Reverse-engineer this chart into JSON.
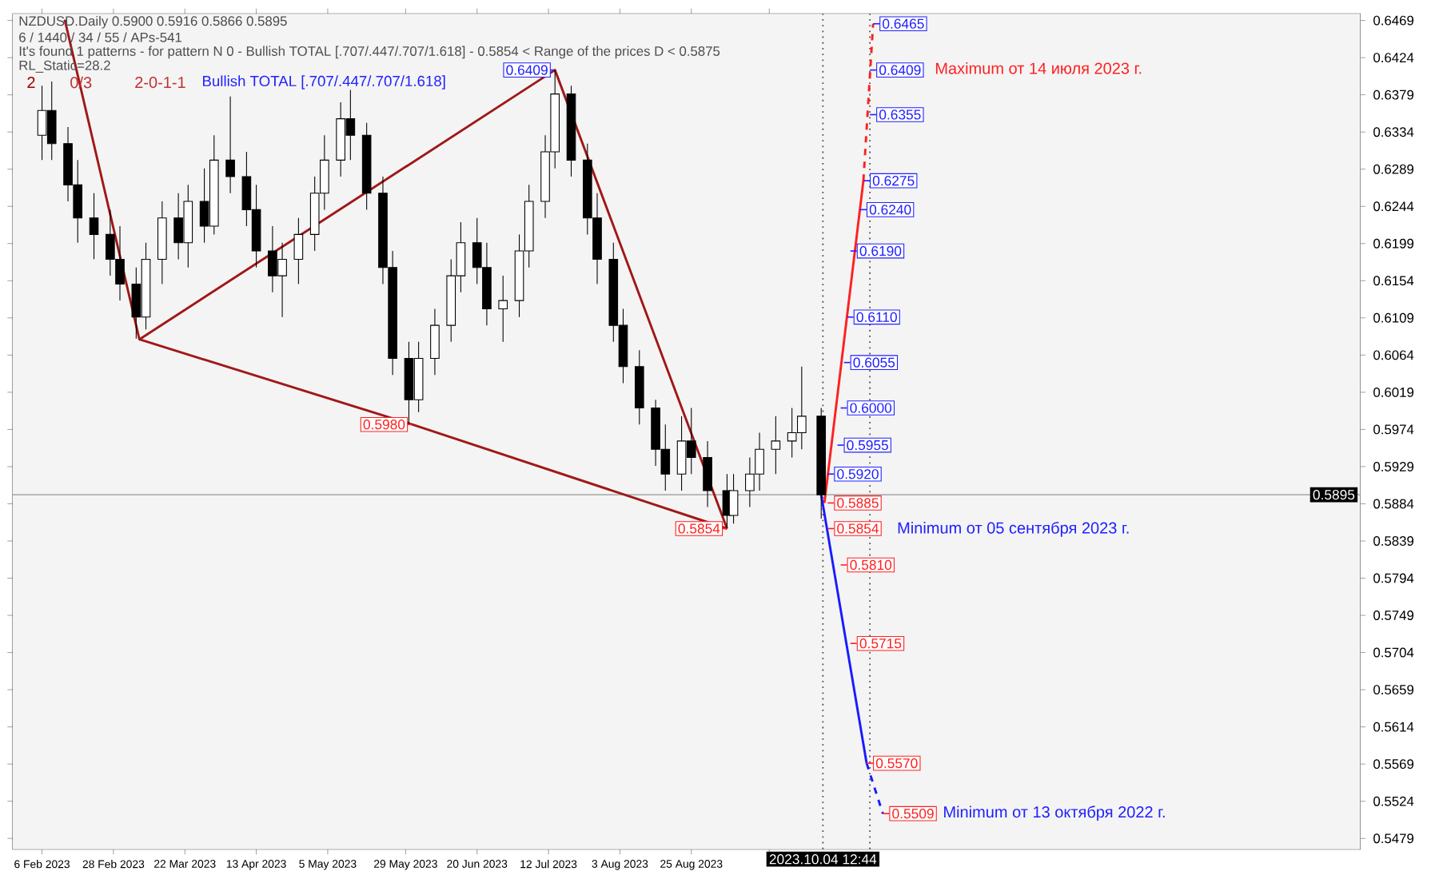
{
  "chart_data": {
    "type": "candlestick",
    "color": "#000000",
    "x": [
      "2023-02-06",
      "2023-02-09",
      "2023-02-14",
      "2023-02-17",
      "2023-02-22",
      "2023-02-27",
      "2023-03-02",
      "2023-03-07",
      "2023-03-10",
      "2023-03-15",
      "2023-03-20",
      "2023-03-23",
      "2023-03-28",
      "2023-03-31",
      "2023-04-05",
      "2023-04-10",
      "2023-04-13",
      "2023-04-18",
      "2023-04-21",
      "2023-04-26",
      "2023-05-01",
      "2023-05-04",
      "2023-05-09",
      "2023-05-12",
      "2023-05-17",
      "2023-05-22",
      "2023-05-25",
      "2023-05-30",
      "2023-06-02",
      "2023-06-07",
      "2023-06-12",
      "2023-06-15",
      "2023-06-20",
      "2023-06-23",
      "2023-06-28",
      "2023-07-03",
      "2023-07-06",
      "2023-07-11",
      "2023-07-14",
      "2023-07-19",
      "2023-07-24",
      "2023-07-27",
      "2023-08-01",
      "2023-08-04",
      "2023-08-09",
      "2023-08-14",
      "2023-08-17",
      "2023-08-22",
      "2023-08-25",
      "2023-08-30",
      "2023-09-05",
      "2023-09-07",
      "2023-09-12",
      "2023-09-15",
      "2023-09-20",
      "2023-09-25",
      "2023-09-28",
      "2023-10-04"
    ],
    "ohlc": [
      [
        0.633,
        0.639,
        0.63,
        0.636
      ],
      [
        0.636,
        0.6395,
        0.63,
        0.632
      ],
      [
        0.632,
        0.634,
        0.625,
        0.627
      ],
      [
        0.627,
        0.63,
        0.62,
        0.623
      ],
      [
        0.623,
        0.626,
        0.618,
        0.621
      ],
      [
        0.621,
        0.624,
        0.616,
        0.618
      ],
      [
        0.618,
        0.622,
        0.613,
        0.615
      ],
      [
        0.615,
        0.617,
        0.6084,
        0.611
      ],
      [
        0.611,
        0.62,
        0.6095,
        0.618
      ],
      [
        0.618,
        0.625,
        0.615,
        0.623
      ],
      [
        0.623,
        0.626,
        0.618,
        0.62
      ],
      [
        0.62,
        0.627,
        0.617,
        0.625
      ],
      [
        0.625,
        0.629,
        0.62,
        0.622
      ],
      [
        0.622,
        0.633,
        0.621,
        0.63
      ],
      [
        0.63,
        0.6377,
        0.626,
        0.628
      ],
      [
        0.628,
        0.631,
        0.622,
        0.624
      ],
      [
        0.624,
        0.627,
        0.617,
        0.619
      ],
      [
        0.619,
        0.622,
        0.614,
        0.616
      ],
      [
        0.616,
        0.62,
        0.611,
        0.618
      ],
      [
        0.618,
        0.623,
        0.615,
        0.621
      ],
      [
        0.621,
        0.628,
        0.619,
        0.626
      ],
      [
        0.626,
        0.633,
        0.624,
        0.63
      ],
      [
        0.63,
        0.637,
        0.628,
        0.635
      ],
      [
        0.635,
        0.6385,
        0.63,
        0.633
      ],
      [
        0.633,
        0.6345,
        0.624,
        0.626
      ],
      [
        0.626,
        0.628,
        0.615,
        0.617
      ],
      [
        0.617,
        0.619,
        0.604,
        0.606
      ],
      [
        0.606,
        0.608,
        0.598,
        0.601
      ],
      [
        0.601,
        0.608,
        0.5995,
        0.606
      ],
      [
        0.606,
        0.612,
        0.604,
        0.61
      ],
      [
        0.61,
        0.618,
        0.608,
        0.616
      ],
      [
        0.616,
        0.6225,
        0.614,
        0.62
      ],
      [
        0.62,
        0.623,
        0.615,
        0.617
      ],
      [
        0.617,
        0.62,
        0.61,
        0.612
      ],
      [
        0.612,
        0.616,
        0.608,
        0.613
      ],
      [
        0.613,
        0.621,
        0.611,
        0.619
      ],
      [
        0.619,
        0.627,
        0.617,
        0.625
      ],
      [
        0.625,
        0.633,
        0.623,
        0.631
      ],
      [
        0.631,
        0.6409,
        0.629,
        0.638
      ],
      [
        0.638,
        0.639,
        0.628,
        0.63
      ],
      [
        0.63,
        0.632,
        0.621,
        0.623
      ],
      [
        0.623,
        0.626,
        0.615,
        0.618
      ],
      [
        0.618,
        0.62,
        0.608,
        0.61
      ],
      [
        0.61,
        0.612,
        0.603,
        0.605
      ],
      [
        0.605,
        0.607,
        0.598,
        0.6
      ],
      [
        0.6,
        0.601,
        0.593,
        0.595
      ],
      [
        0.595,
        0.598,
        0.59,
        0.592
      ],
      [
        0.592,
        0.599,
        0.59,
        0.596
      ],
      [
        0.596,
        0.6,
        0.592,
        0.594
      ],
      [
        0.594,
        0.596,
        0.588,
        0.59
      ],
      [
        0.59,
        0.592,
        0.5854,
        0.587
      ],
      [
        0.587,
        0.592,
        0.586,
        0.59
      ],
      [
        0.59,
        0.594,
        0.588,
        0.592
      ],
      [
        0.592,
        0.597,
        0.59,
        0.595
      ],
      [
        0.595,
        0.599,
        0.592,
        0.596
      ],
      [
        0.596,
        0.6,
        0.594,
        0.597
      ],
      [
        0.597,
        0.605,
        0.595,
        0.599
      ],
      [
        0.599,
        0.6,
        0.5866,
        0.5895
      ]
    ],
    "series": [
      {
        "type": "line",
        "color": "#a01818",
        "line_style": "solid",
        "x": [
          "2023-02-13",
          "2023-03-08",
          "2023-07-14",
          "2023-09-05"
        ],
        "values": [
          0.647,
          0.6083,
          0.6409,
          0.5854
        ]
      },
      {
        "type": "line",
        "color": "#a01818",
        "line_style": "solid",
        "x": [
          "2023-03-08",
          "2023-05-31",
          "2023-09-05"
        ],
        "values": [
          0.6083,
          0.598,
          0.5854
        ]
      },
      {
        "type": "line",
        "color": "#ff2020",
        "line_style": "solid",
        "x": [
          "2023-10-05",
          "2023-10-17"
        ],
        "values": [
          0.5885,
          0.6275
        ]
      },
      {
        "type": "line",
        "color": "#ff2020",
        "line_style": "dashed",
        "x": [
          "2023-10-17",
          "2023-10-20"
        ],
        "values": [
          0.6275,
          0.6465
        ]
      },
      {
        "type": "line",
        "color": "#1a1aff",
        "line_style": "solid",
        "x": [
          "2023-10-04",
          "2023-10-18"
        ],
        "values": [
          0.5895,
          0.557
        ]
      },
      {
        "type": "line",
        "color": "#1a1aff",
        "line_style": "dashed",
        "x": [
          "2023-10-18",
          "2023-10-23"
        ],
        "values": [
          0.557,
          0.5509
        ]
      }
    ],
    "xlim": [
      "2023-01-28",
      "2024-03-18"
    ],
    "ylim": [
      0.5466,
      0.6477
    ],
    "xticks": [
      {
        "value": "2023-02-06",
        "label": "6 Feb 2023"
      },
      {
        "value": "2023-02-28",
        "label": "28 Feb 2023"
      },
      {
        "value": "2023-03-22",
        "label": "22 Mar 2023"
      },
      {
        "value": "2023-04-13",
        "label": "13 Apr 2023"
      },
      {
        "value": "2023-05-05",
        "label": "5 May 2023"
      },
      {
        "value": "2023-05-29",
        "label": "29 May 2023"
      },
      {
        "value": "2023-06-20",
        "label": "20 Jun 2023"
      },
      {
        "value": "2023-07-12",
        "label": "12 Jul 2023"
      },
      {
        "value": "2023-08-03",
        "label": "3 Aug 2023"
      },
      {
        "value": "2023-08-25",
        "label": "25 Aug 2023"
      },
      {
        "value": "2023-09-18",
        "label": null
      }
    ],
    "yticks": [
      0.5479,
      0.5524,
      0.5569,
      0.5614,
      0.5659,
      0.5704,
      0.5749,
      0.5794,
      0.5839,
      0.5884,
      0.5929,
      0.5974,
      0.6019,
      0.6064,
      0.6109,
      0.6154,
      0.6199,
      0.6244,
      0.6289,
      0.6334,
      0.6379,
      0.6424,
      0.6469
    ],
    "ref_lines": [
      {
        "axis": "y",
        "value": 0.5895,
        "label": "0.5895",
        "color": "#b0b0b0",
        "line_style": "solid"
      },
      {
        "axis": "x",
        "value": "2023-10-04T12:44",
        "label": "2023.10.04 12:44",
        "color": "#555555",
        "line_style": "dotted"
      },
      {
        "axis": "x",
        "value": "2023-10-19",
        "color": "#555555",
        "line_style": "dotted"
      }
    ],
    "annotations": [
      "NZDUSD.Daily 0.5900 0.5916 0.5866 0.5895",
      "6 / 1440 / 34 / 55 / APs-541",
      "It's found 1 patterns  -  for pattern N 0 - Bullish TOTAL [.707/.447/.707/1.618] - 0.5854 < Range of the prices D < 0.5875",
      "RL_Static=28.2",
      "2",
      "0/3",
      "2-0-1-1",
      "Bullish TOTAL [.707/.447/.707/1.618]",
      {
        "text": "0.6409",
        "x": "2023-07-14",
        "y": 0.6409
      },
      {
        "text": "0.5980",
        "x": "2023-05-31",
        "y": 0.598
      },
      {
        "text": "0.5854",
        "x": "2023-09-05",
        "y": 0.5854
      },
      {
        "text": "0.6465",
        "x": "2023-10-20",
        "y": 0.6465
      },
      {
        "text": "0.6409",
        "x": "2023-10-19",
        "y": 0.6409
      },
      {
        "text": "0.6355",
        "x": "2023-10-19",
        "y": 0.6355
      },
      {
        "text": "0.6275",
        "x": "2023-10-17",
        "y": 0.6275
      },
      {
        "text": "0.6240",
        "x": "2023-10-16",
        "y": 0.624
      },
      {
        "text": "0.6190",
        "x": "2023-10-13",
        "y": 0.619
      },
      {
        "text": "0.6110",
        "x": "2023-10-12",
        "y": 0.611
      },
      {
        "text": "0.6055",
        "x": "2023-10-11",
        "y": 0.6055
      },
      {
        "text": "0.6000",
        "x": "2023-10-10",
        "y": 0.6
      },
      {
        "text": "0.5955",
        "x": "2023-10-09",
        "y": 0.5955
      },
      {
        "text": "0.5920",
        "x": "2023-10-06",
        "y": 0.592
      },
      {
        "text": "0.5885",
        "x": "2023-10-06",
        "y": 0.5885
      },
      {
        "text": "0.5854",
        "x": "2023-10-06",
        "y": 0.5854
      },
      {
        "text": "0.5810",
        "x": "2023-10-10",
        "y": 0.581
      },
      {
        "text": "0.5715",
        "x": "2023-10-13",
        "y": 0.5715
      },
      {
        "text": "0.5570",
        "x": "2023-10-18",
        "y": 0.557
      },
      {
        "text": "0.5509",
        "x": "2023-10-23",
        "y": 0.5509
      },
      "Maximum от 14 июля 2023  г.",
      "Minimum  от 05 сентября 2023  г.",
      "Minimum от 13 октября 2022 г."
    ]
  }
}
